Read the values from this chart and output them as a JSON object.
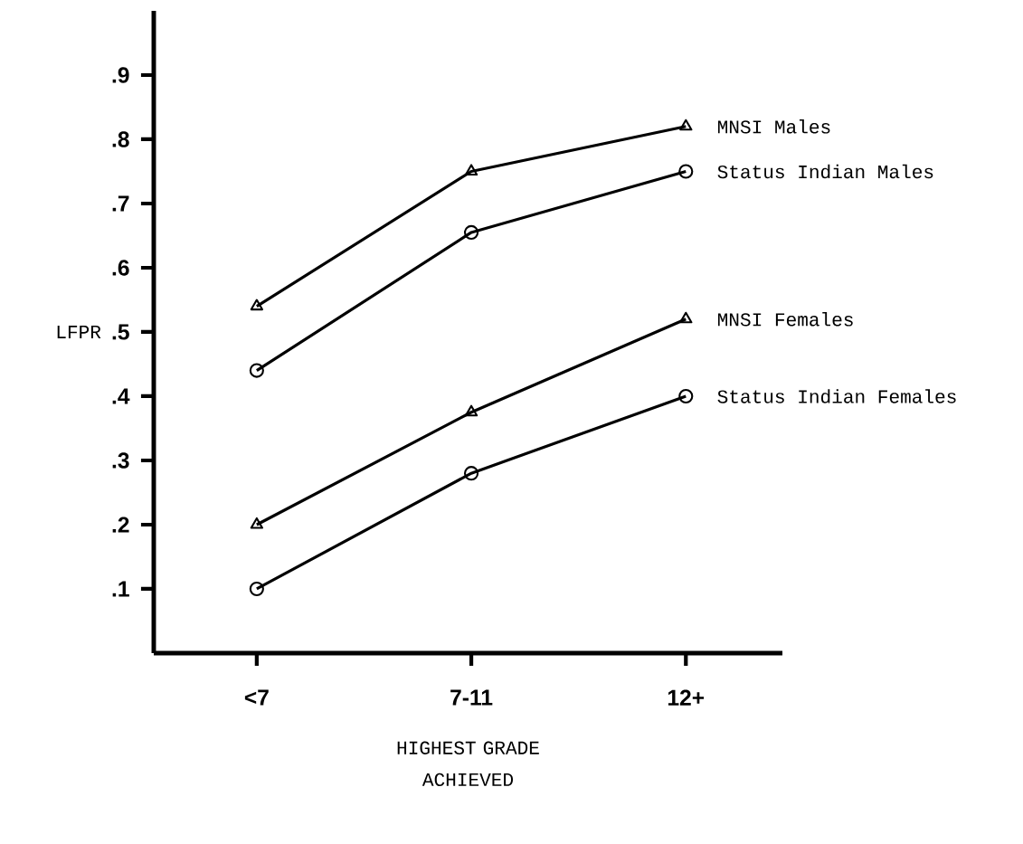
{
  "chart_data": {
    "type": "line",
    "xlabel": "HIGHEST GRADE ACHIEVED",
    "ylabel": "LFPR",
    "categories": [
      "<7",
      "7-11",
      "12+"
    ],
    "ylim": [
      0,
      1
    ],
    "yticks": [
      {
        "value": 0.1,
        "label": ".1"
      },
      {
        "value": 0.2,
        "label": ".2"
      },
      {
        "value": 0.3,
        "label": ".3"
      },
      {
        "value": 0.4,
        "label": ".4"
      },
      {
        "value": 0.5,
        "label": ".5"
      },
      {
        "value": 0.6,
        "label": ".6"
      },
      {
        "value": 0.7,
        "label": ".7"
      },
      {
        "value": 0.8,
        "label": ".8"
      },
      {
        "value": 0.9,
        "label": ".9"
      }
    ],
    "series": [
      {
        "name": "MNSI Males",
        "color": "#000000",
        "marker": "triangle",
        "values": [
          0.54,
          0.75,
          0.82
        ]
      },
      {
        "name": "Status Indian Males",
        "color": "#000000",
        "marker": "circle",
        "values": [
          0.44,
          0.655,
          0.75
        ]
      },
      {
        "name": "MNSI Females",
        "color": "#000000",
        "marker": "triangle",
        "values": [
          0.2,
          0.375,
          0.52
        ]
      },
      {
        "name": "Status Indian Females",
        "color": "#000000",
        "marker": "circle",
        "values": [
          0.1,
          0.28,
          0.4
        ]
      }
    ]
  }
}
